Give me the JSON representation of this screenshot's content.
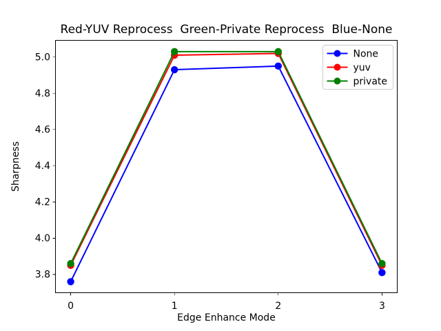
{
  "chart_data": {
    "type": "line",
    "title": "Red-YUV Reprocess  Green-Private Reprocess  Blue-None",
    "xlabel": "Edge Enhance Mode",
    "ylabel": "Sharpness",
    "x": [
      0,
      1,
      2,
      3
    ],
    "series": [
      {
        "name": "None",
        "color": "#0000ff",
        "values": [
          3.76,
          4.93,
          4.95,
          3.81
        ]
      },
      {
        "name": "yuv",
        "color": "#ff0000",
        "values": [
          3.85,
          5.01,
          5.02,
          3.85
        ]
      },
      {
        "name": "private",
        "color": "#008000",
        "values": [
          3.86,
          5.03,
          5.03,
          3.86
        ]
      }
    ],
    "xlim": [
      -0.15,
      3.15
    ],
    "ylim": [
      3.697,
      5.094
    ],
    "xticks": [
      0,
      1,
      2,
      3
    ],
    "xtick_labels": [
      "0",
      "1",
      "2",
      "3"
    ],
    "yticks": [
      3.8,
      4.0,
      4.2,
      4.4,
      4.6,
      4.8,
      5.0
    ],
    "ytick_labels": [
      "3.8",
      "4.0",
      "4.2",
      "4.4",
      "4.6",
      "4.8",
      "5.0"
    ],
    "grid": false,
    "legend": {
      "position": "upper right",
      "entries": [
        "None",
        "yuv",
        "private"
      ]
    },
    "colors": {
      "axis": "#000000",
      "legend_border": "#cccccc",
      "background": "#ffffff"
    }
  }
}
